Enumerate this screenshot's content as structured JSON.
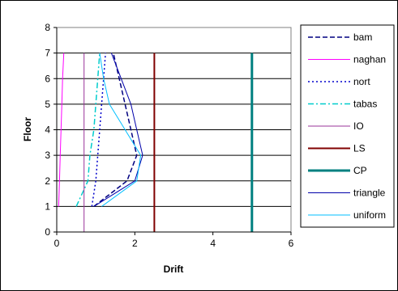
{
  "chart_data": {
    "type": "line",
    "xlabel": "Drift",
    "ylabel": "Floor",
    "xlim": [
      0,
      6
    ],
    "ylim": [
      0,
      8
    ],
    "xticks": [
      0,
      2,
      4,
      6
    ],
    "yticks": [
      0,
      1,
      2,
      3,
      4,
      5,
      6,
      7,
      8
    ],
    "grid": "horizontal",
    "legend_position": "right",
    "series": [
      {
        "name": "bam",
        "color": "#000080",
        "style": "dashed",
        "width": 1.5,
        "x": [
          0.95,
          1.8,
          2.05,
          1.9,
          1.75,
          1.6,
          1.45
        ],
        "y": [
          1,
          2,
          3,
          4,
          5,
          6,
          7
        ]
      },
      {
        "name": "naghan",
        "color": "#ff00ff",
        "style": "solid",
        "width": 1,
        "x": [
          0.05,
          0.07,
          0.09,
          0.11,
          0.13,
          0.15,
          0.18
        ],
        "y": [
          1,
          2,
          3,
          4,
          5,
          6,
          7
        ]
      },
      {
        "name": "nort",
        "color": "#0000cc",
        "style": "dotted",
        "width": 1.5,
        "x": [
          0.9,
          1.0,
          1.05,
          1.1,
          1.15,
          1.2,
          1.25
        ],
        "y": [
          1,
          2,
          3,
          4,
          5,
          6,
          7
        ]
      },
      {
        "name": "tabas",
        "color": "#00cccc",
        "style": "dashdot",
        "width": 1.5,
        "x": [
          0.5,
          0.8,
          0.85,
          0.95,
          1.0,
          1.05,
          1.1
        ],
        "y": [
          1,
          2,
          3,
          4,
          5,
          6,
          7
        ]
      },
      {
        "name": "IO",
        "color": "#993399",
        "style": "solid",
        "width": 1,
        "x": [
          0.7,
          0.7
        ],
        "y": [
          0,
          7
        ]
      },
      {
        "name": "LS",
        "color": "#800000",
        "style": "solid",
        "width": 2,
        "x": [
          2.5,
          2.5
        ],
        "y": [
          0,
          7
        ]
      },
      {
        "name": "CP",
        "color": "#008080",
        "style": "solid",
        "width": 3,
        "x": [
          5.0,
          5.0
        ],
        "y": [
          0,
          7
        ]
      },
      {
        "name": "triangle",
        "color": "#0000aa",
        "style": "solid",
        "width": 1,
        "x": [
          0.95,
          2.0,
          2.2,
          2.05,
          1.9,
          1.65,
          1.4
        ],
        "y": [
          1,
          2,
          3,
          4,
          5,
          6,
          7
        ]
      },
      {
        "name": "uniform",
        "color": "#00bfff",
        "style": "solid",
        "width": 1,
        "x": [
          1.15,
          2.05,
          2.15,
          1.75,
          1.35,
          1.2,
          1.1
        ],
        "y": [
          1,
          2,
          3,
          4,
          5,
          6,
          7
        ]
      }
    ]
  }
}
